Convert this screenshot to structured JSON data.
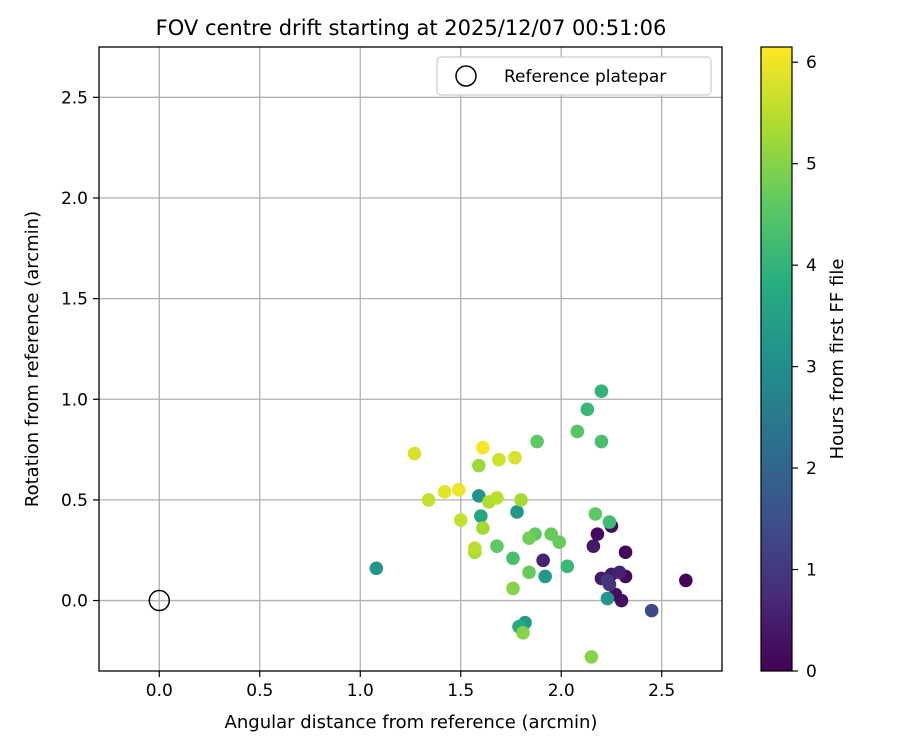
{
  "chart_data": {
    "type": "scatter",
    "title": "FOV centre drift starting at 2025/12/07 00:51:06",
    "xlabel": "Angular distance from reference (arcmin)",
    "ylabel": "Rotation from reference (arcmin)",
    "xlim": [
      -0.3,
      2.8
    ],
    "ylim": [
      -0.35,
      2.75
    ],
    "xticks": [
      0.0,
      0.5,
      1.0,
      1.5,
      2.0,
      2.5
    ],
    "yticks": [
      0.0,
      0.5,
      1.0,
      1.5,
      2.0,
      2.5
    ],
    "grid": true,
    "legend": {
      "placement": "top-right",
      "entries": [
        {
          "label": "Reference platepar",
          "marker": "open-circle"
        }
      ]
    },
    "reference_point": {
      "x": 0.0,
      "y": 0.0
    },
    "colorbar": {
      "label": "Hours from first FF file",
      "colormap": "viridis",
      "range": [
        0,
        6.15
      ],
      "ticks": [
        0,
        1,
        2,
        3,
        4,
        5,
        6
      ]
    },
    "points": [
      {
        "x": 2.62,
        "y": 0.1,
        "c": 0.05
      },
      {
        "x": 2.3,
        "y": 0.0,
        "c": 0.3
      },
      {
        "x": 2.27,
        "y": 0.03,
        "c": 0.2
      },
      {
        "x": 2.32,
        "y": 0.12,
        "c": 0.15
      },
      {
        "x": 2.32,
        "y": 0.24,
        "c": 0.1
      },
      {
        "x": 2.25,
        "y": 0.37,
        "c": 0.2
      },
      {
        "x": 2.18,
        "y": 0.33,
        "c": 0.15
      },
      {
        "x": 2.16,
        "y": 0.27,
        "c": 0.4
      },
      {
        "x": 2.2,
        "y": 0.11,
        "c": 0.4
      },
      {
        "x": 2.25,
        "y": 0.13,
        "c": 0.4
      },
      {
        "x": 2.29,
        "y": 0.14,
        "c": 0.6
      },
      {
        "x": 2.23,
        "y": 0.1,
        "c": 1.0
      },
      {
        "x": 2.24,
        "y": 0.08,
        "c": 0.9
      },
      {
        "x": 1.91,
        "y": 0.2,
        "c": 0.6
      },
      {
        "x": 2.45,
        "y": -0.05,
        "c": 1.3
      },
      {
        "x": 2.23,
        "y": 0.01,
        "c": 3.2
      },
      {
        "x": 1.92,
        "y": 0.12,
        "c": 3.3
      },
      {
        "x": 1.78,
        "y": 0.44,
        "c": 3.2
      },
      {
        "x": 1.59,
        "y": 0.52,
        "c": 3.1
      },
      {
        "x": 1.08,
        "y": 0.16,
        "c": 3.2
      },
      {
        "x": 1.82,
        "y": -0.11,
        "c": 3.3
      },
      {
        "x": 1.79,
        "y": -0.13,
        "c": 3.7
      },
      {
        "x": 1.6,
        "y": 0.42,
        "c": 3.6
      },
      {
        "x": 2.2,
        "y": 1.04,
        "c": 4.0
      },
      {
        "x": 2.13,
        "y": 0.95,
        "c": 4.1
      },
      {
        "x": 2.2,
        "y": 0.79,
        "c": 4.3
      },
      {
        "x": 2.08,
        "y": 0.84,
        "c": 4.5
      },
      {
        "x": 2.24,
        "y": 0.39,
        "c": 4.2
      },
      {
        "x": 2.17,
        "y": 0.43,
        "c": 4.6
      },
      {
        "x": 2.03,
        "y": 0.17,
        "c": 4.1
      },
      {
        "x": 1.76,
        "y": 0.21,
        "c": 4.3
      },
      {
        "x": 1.88,
        "y": 0.79,
        "c": 4.6
      },
      {
        "x": 1.95,
        "y": 0.33,
        "c": 4.7
      },
      {
        "x": 1.87,
        "y": 0.33,
        "c": 4.6
      },
      {
        "x": 1.99,
        "y": 0.29,
        "c": 4.7
      },
      {
        "x": 1.68,
        "y": 0.27,
        "c": 4.6
      },
      {
        "x": 1.84,
        "y": 0.14,
        "c": 4.7
      },
      {
        "x": 1.84,
        "y": 0.31,
        "c": 4.8
      },
      {
        "x": 1.76,
        "y": 0.06,
        "c": 5.0
      },
      {
        "x": 1.81,
        "y": -0.16,
        "c": 5.0
      },
      {
        "x": 2.15,
        "y": -0.28,
        "c": 5.0
      },
      {
        "x": 1.59,
        "y": 0.67,
        "c": 5.2
      },
      {
        "x": 1.8,
        "y": 0.5,
        "c": 5.3
      },
      {
        "x": 1.61,
        "y": 0.36,
        "c": 5.3
      },
      {
        "x": 1.57,
        "y": 0.24,
        "c": 5.3
      },
      {
        "x": 1.57,
        "y": 0.26,
        "c": 5.5
      },
      {
        "x": 1.64,
        "y": 0.49,
        "c": 5.4
      },
      {
        "x": 1.68,
        "y": 0.51,
        "c": 5.5
      },
      {
        "x": 1.5,
        "y": 0.4,
        "c": 5.6
      },
      {
        "x": 1.34,
        "y": 0.5,
        "c": 5.6
      },
      {
        "x": 1.69,
        "y": 0.7,
        "c": 5.7
      },
      {
        "x": 1.77,
        "y": 0.71,
        "c": 5.8
      },
      {
        "x": 1.27,
        "y": 0.73,
        "c": 5.8
      },
      {
        "x": 1.42,
        "y": 0.54,
        "c": 5.9
      },
      {
        "x": 1.49,
        "y": 0.55,
        "c": 6.0
      },
      {
        "x": 1.61,
        "y": 0.76,
        "c": 6.1
      }
    ]
  }
}
